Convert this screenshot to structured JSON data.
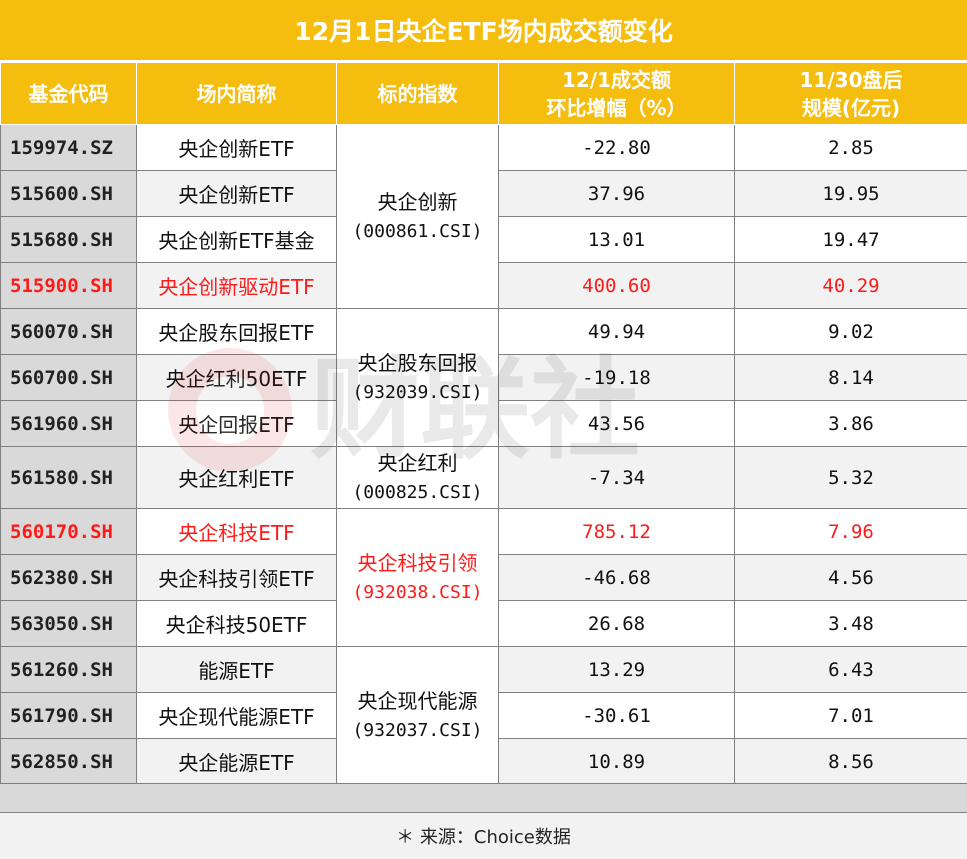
{
  "title": "12月1日央企ETF场内成交额变化",
  "headers": {
    "code": "基金代码",
    "name": "场内简称",
    "index": "标的指数",
    "change_line1": "12/1成交额",
    "change_line2": "环比增幅（%）",
    "scale_line1": "11/30盘后",
    "scale_line2": "规模(亿元)"
  },
  "rows": [
    {
      "code": "159974.SZ",
      "name": "央企创新ETF",
      "change": "-22.80",
      "scale": "2.85"
    },
    {
      "code": "515600.SH",
      "name": "央企创新ETF",
      "change": "37.96",
      "scale": "19.95"
    },
    {
      "code": "515680.SH",
      "name": "央企创新ETF基金",
      "change": "13.01",
      "scale": "19.47"
    },
    {
      "code": "515900.SH",
      "name": "央企创新驱动ETF",
      "change": "400.60",
      "scale": "40.29"
    },
    {
      "code": "560070.SH",
      "name": "央企股东回报ETF",
      "change": "49.94",
      "scale": "9.02"
    },
    {
      "code": "560700.SH",
      "name": "央企红利50ETF",
      "change": "-19.18",
      "scale": "8.14"
    },
    {
      "code": "561960.SH",
      "name": "央企回报ETF",
      "change": "43.56",
      "scale": "3.86"
    },
    {
      "code": "561580.SH",
      "name": "央企红利ETF",
      "change": "-7.34",
      "scale": "5.32"
    },
    {
      "code": "560170.SH",
      "name": "央企科技ETF",
      "change": "785.12",
      "scale": "7.96"
    },
    {
      "code": "562380.SH",
      "name": "央企科技引领ETF",
      "change": "-46.68",
      "scale": "4.56"
    },
    {
      "code": "563050.SH",
      "name": "央企科技50ETF",
      "change": "26.68",
      "scale": "3.48"
    },
    {
      "code": "561260.SH",
      "name": "能源ETF",
      "change": "13.29",
      "scale": "6.43"
    },
    {
      "code": "561790.SH",
      "name": "央企现代能源ETF",
      "change": "-30.61",
      "scale": "7.01"
    },
    {
      "code": "562850.SH",
      "name": "央企能源ETF",
      "change": "10.89",
      "scale": "8.56"
    }
  ],
  "indices": [
    {
      "name": "央企创新",
      "code": "(000861.CSI)"
    },
    {
      "name": "央企股东回报",
      "code": "(932039.CSI)"
    },
    {
      "name": "央企红利",
      "code": "(000825.CSI)"
    },
    {
      "name": "央企科技引领",
      "code": "(932038.CSI)"
    },
    {
      "name": "央企现代能源",
      "code": "(932037.CSI)"
    }
  ],
  "highlight_color": "#ff1a1a",
  "header_color": "#f5bd0e",
  "source": "＊ 来源：Choice数据",
  "watermark": "财联社"
}
